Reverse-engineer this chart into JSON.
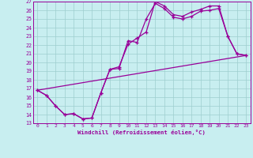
{
  "xlabel": "Windchill (Refroidissement éolien,°C)",
  "bg_color": "#c8eef0",
  "line_color": "#990099",
  "xlim": [
    -0.5,
    23.5
  ],
  "ylim": [
    13,
    27
  ],
  "xticks": [
    0,
    1,
    2,
    3,
    4,
    5,
    6,
    7,
    8,
    9,
    10,
    11,
    12,
    13,
    14,
    15,
    16,
    17,
    18,
    19,
    20,
    21,
    22,
    23
  ],
  "yticks": [
    13,
    14,
    15,
    16,
    17,
    18,
    19,
    20,
    21,
    22,
    23,
    24,
    25,
    26,
    27
  ],
  "line1_x": [
    0,
    1,
    2,
    3,
    4,
    5,
    6,
    7,
    8,
    9,
    10,
    11,
    12,
    13,
    14,
    15,
    16,
    17,
    18,
    19,
    20,
    21,
    22,
    23
  ],
  "line1_y": [
    16.8,
    16.2,
    15.0,
    14.0,
    14.1,
    13.5,
    13.6,
    16.5,
    19.2,
    19.3,
    22.5,
    22.3,
    25.0,
    26.8,
    26.2,
    25.2,
    25.0,
    25.3,
    25.9,
    26.0,
    26.2,
    23.0,
    21.0,
    20.8
  ],
  "line2_x": [
    0,
    1,
    2,
    3,
    4,
    5,
    6,
    7,
    8,
    9,
    10,
    11,
    12,
    13,
    14,
    15,
    16,
    17,
    18,
    19,
    20,
    21,
    22,
    23
  ],
  "line2_y": [
    16.8,
    16.2,
    15.0,
    14.0,
    14.1,
    13.5,
    13.6,
    16.5,
    19.2,
    19.5,
    22.1,
    22.8,
    23.5,
    27.0,
    26.5,
    25.5,
    25.3,
    25.8,
    26.1,
    26.5,
    26.5,
    23.0,
    21.0,
    20.8
  ],
  "line3_x": [
    0,
    23
  ],
  "line3_y": [
    16.8,
    20.8
  ],
  "marker": "+"
}
